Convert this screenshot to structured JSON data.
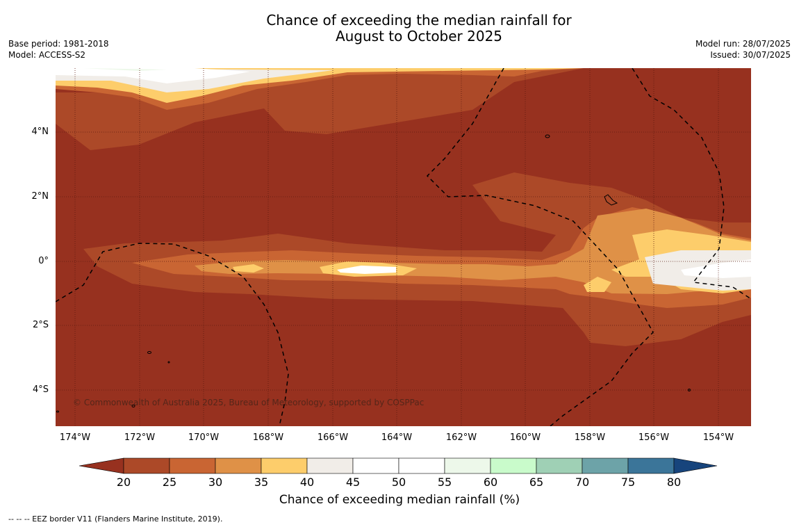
{
  "title_line1": "Chance of exceeding the median rainfall for",
  "title_line2": "August to October 2025",
  "meta_left": {
    "base_period": "Base period: 1981-2018",
    "model": "Model: ACCESS-S2"
  },
  "meta_right": {
    "model_run": "Model run: 28/07/2025",
    "issued": "Issued: 30/07/2025"
  },
  "map": {
    "lat_labels": [
      "4°N",
      "2°N",
      "0°",
      "2°S",
      "4°S"
    ],
    "lon_labels": [
      "174°W",
      "172°W",
      "170°W",
      "168°W",
      "166°W",
      "164°W",
      "162°W",
      "160°W",
      "158°W",
      "156°W",
      "154°W"
    ],
    "background_color": "#97311f",
    "copyright": "© Commonwealth of Australia 2025, Bureau of Meteorology, supported by COSPPac"
  },
  "colorbar": {
    "ticks": [
      "20",
      "25",
      "30",
      "35",
      "40",
      "45",
      "50",
      "55",
      "60",
      "65",
      "70",
      "75",
      "80"
    ],
    "colors": [
      "#97311f",
      "#ac4928",
      "#c96533",
      "#df9147",
      "#fdcd6b",
      "#f1ede8",
      "#ffffff",
      "#ffffff",
      "#edf8ea",
      "#c9fbcb",
      "#9fd0b5",
      "#6da3a8",
      "#3b7599",
      "#17447c"
    ],
    "title": "Chance of exceeding median rainfall (%)"
  },
  "eez_note": "--  --  -- EEZ border V11 (Flanders Marine Institute, 2019)."
}
